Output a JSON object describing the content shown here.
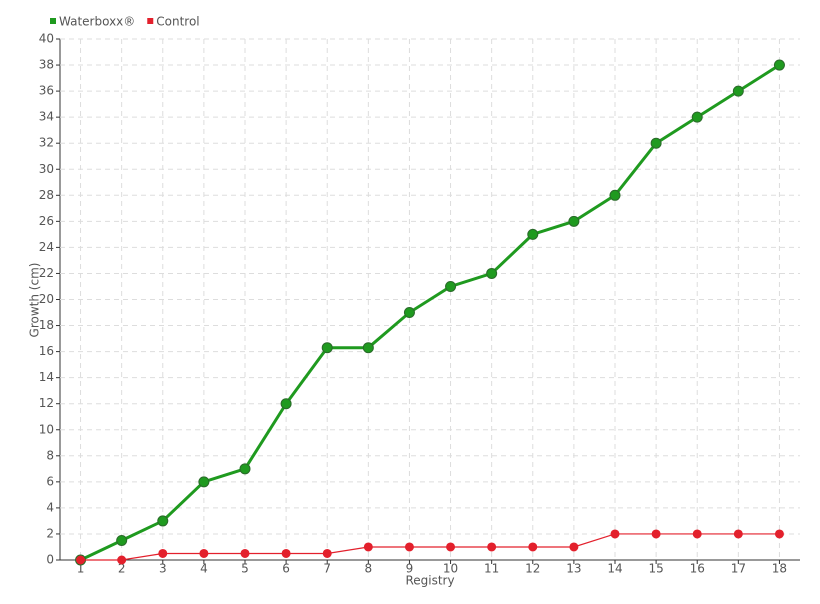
{
  "chart_data": {
    "type": "line",
    "categories": [
      "1",
      "2",
      "3",
      "4",
      "5",
      "6",
      "7",
      "8",
      "9",
      "10",
      "11",
      "12",
      "13",
      "14",
      "15",
      "16",
      "17",
      "18"
    ],
    "series": [
      {
        "name": "Waterboxx®",
        "color": "#1f9a1f",
        "values": [
          0,
          1.5,
          3,
          6,
          7,
          12,
          16.3,
          16.3,
          19,
          21,
          22,
          25,
          26,
          28,
          32,
          34,
          36,
          38
        ]
      },
      {
        "name": "Control",
        "color": "#e3202c",
        "values": [
          0,
          0,
          0.5,
          0.5,
          0.5,
          0.5,
          0.5,
          1,
          1,
          1,
          1,
          1,
          1,
          2,
          2,
          2,
          2,
          2
        ]
      }
    ],
    "x_label": "Registry",
    "y_label": "Growth (cm)",
    "ylim": [
      0,
      40
    ],
    "yticks": [
      0,
      2,
      4,
      6,
      8,
      10,
      12,
      14,
      16,
      18,
      20,
      22,
      24,
      26,
      28,
      30,
      32,
      34,
      36,
      38,
      40
    ],
    "grid": true,
    "legend": "top-left"
  }
}
